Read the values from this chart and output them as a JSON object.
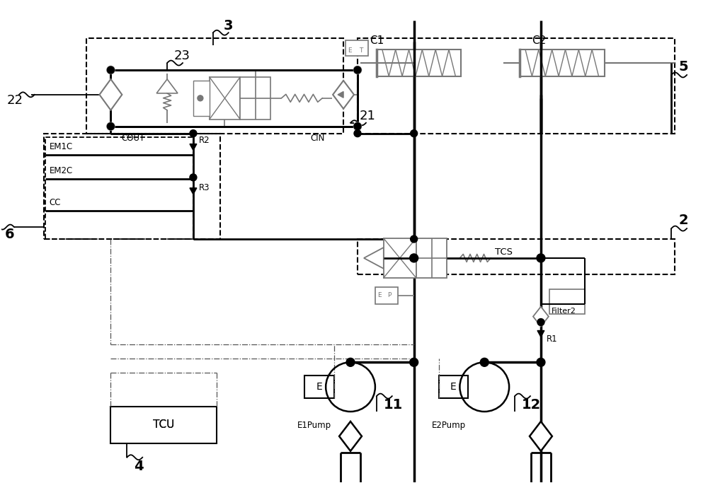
{
  "bg_color": "#ffffff",
  "lc": "#000000",
  "gc": "#777777",
  "figsize": [
    10.0,
    6.83
  ],
  "dpi": 100,
  "xlim": [
    0,
    10
  ],
  "ylim": [
    0,
    6.83
  ]
}
